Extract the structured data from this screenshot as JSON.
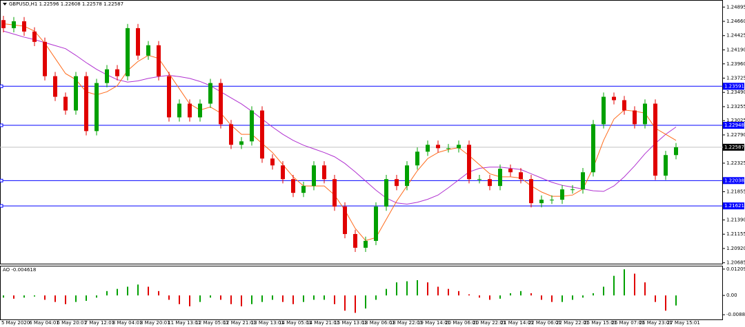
{
  "chart_data": [
    {
      "type": "candlestick",
      "title": "GBPUSD,H1  1.22596 1.22608 1.22578 1.22587",
      "x_labels": [
        "5 May 2020",
        "6 May 04:01",
        "6 May 20:01",
        "7 May 12:01",
        "8 May 04:01",
        "8 May 20:01",
        "11 May 13:01",
        "12 May 05:01",
        "12 May 21:01",
        "13 May 13:01",
        "14 May 05:01",
        "14 May 21:01",
        "15 May 13:01",
        "18 May 06:01",
        "18 May 22:01",
        "19 May 14:01",
        "20 May 06:01",
        "20 May 22:01",
        "21 May 14:01",
        "22 May 06:01",
        "22 May 22:01",
        "25 May 15:01",
        "26 May 07:01",
        "26 May 23:01",
        "27 May 15:01"
      ],
      "open": [
        1.2468,
        1.24548,
        1.24661,
        1.24492,
        1.24322,
        1.23757,
        1.23418,
        1.23192,
        1.23757,
        1.22853,
        1.23644,
        1.2387,
        1.23757,
        1.24548,
        1.24096,
        1.24266,
        1.23757,
        1.23079,
        1.23305,
        1.23079,
        1.23305,
        1.23644,
        1.22966,
        1.22627,
        1.22684,
        1.23192,
        1.22401,
        1.22288,
        1.22062,
        1.21836,
        1.21949,
        1.22288,
        1.22062,
        1.2161,
        1.21158,
        1.20932,
        1.21045,
        1.2161,
        1.22062,
        1.21949,
        1.22288,
        1.22514,
        1.22627,
        1.22571,
        1.22571,
        1.22627,
        1.22062,
        1.22062,
        1.21949,
        1.22232,
        1.22175,
        1.22062,
        1.21666,
        1.21723,
        1.21723,
        1.21893,
        1.21893,
        1.22175,
        1.22966,
        1.23418,
        1.23362,
        1.23192,
        1.22966,
        1.23305,
        1.22119,
        1.22458
      ],
      "high": [
        1.2475,
        1.24731,
        1.24731,
        1.24562,
        1.24392,
        1.23827,
        1.23488,
        1.23827,
        1.23827,
        1.23714,
        1.2394,
        1.2394,
        1.24618,
        1.24618,
        1.24336,
        1.24336,
        1.23827,
        1.23375,
        1.23375,
        1.23375,
        1.23714,
        1.23714,
        1.23036,
        1.22754,
        1.23262,
        1.23262,
        1.22471,
        1.22358,
        1.22132,
        1.22019,
        1.22358,
        1.22358,
        1.22132,
        1.2168,
        1.21228,
        1.21115,
        1.2168,
        1.22132,
        1.22132,
        1.22358,
        1.22584,
        1.22697,
        1.22697,
        1.22641,
        1.22697,
        1.22697,
        1.22132,
        1.22132,
        1.22302,
        1.22302,
        1.22245,
        1.22132,
        1.21793,
        1.21793,
        1.21963,
        1.21963,
        1.22245,
        1.23036,
        1.23488,
        1.23488,
        1.23432,
        1.23262,
        1.23375,
        1.23375,
        1.22528,
        1.22657
      ],
      "low": [
        1.24478,
        1.24478,
        1.24422,
        1.24252,
        1.23687,
        1.23348,
        1.23122,
        1.23122,
        1.22783,
        1.22783,
        1.23574,
        1.23687,
        1.23687,
        1.24026,
        1.24026,
        1.23687,
        1.23009,
        1.23009,
        1.23009,
        1.23009,
        1.23235,
        1.22896,
        1.22557,
        1.22557,
        1.22614,
        1.22331,
        1.22218,
        1.21992,
        1.21766,
        1.21766,
        1.21879,
        1.21992,
        1.2154,
        1.21088,
        1.20862,
        1.20862,
        1.20975,
        1.2154,
        1.21879,
        1.21879,
        1.22218,
        1.22444,
        1.22501,
        1.22501,
        1.22501,
        1.21992,
        1.21992,
        1.21879,
        1.21879,
        1.22105,
        1.21992,
        1.21596,
        1.21596,
        1.21653,
        1.21653,
        1.21823,
        1.21823,
        1.22105,
        1.22896,
        1.23292,
        1.23122,
        1.22896,
        1.22896,
        1.22049,
        1.22049,
        1.22388
      ],
      "close": [
        1.24548,
        1.24661,
        1.24492,
        1.24322,
        1.23757,
        1.23418,
        1.23192,
        1.23757,
        1.22853,
        1.23644,
        1.2387,
        1.23757,
        1.24548,
        1.24096,
        1.24266,
        1.23757,
        1.23079,
        1.23305,
        1.23079,
        1.23305,
        1.23644,
        1.22966,
        1.22627,
        1.22684,
        1.23192,
        1.22401,
        1.22288,
        1.22062,
        1.21836,
        1.21949,
        1.22288,
        1.22062,
        1.2161,
        1.21158,
        1.20932,
        1.21045,
        1.2161,
        1.22062,
        1.21949,
        1.22288,
        1.22514,
        1.22627,
        1.22571,
        1.22571,
        1.22627,
        1.22062,
        1.22062,
        1.21949,
        1.22232,
        1.22175,
        1.22062,
        1.21666,
        1.21723,
        1.21723,
        1.21893,
        1.21893,
        1.22175,
        1.22966,
        1.23418,
        1.23362,
        1.23192,
        1.22966,
        1.23305,
        1.22119,
        1.22458,
        1.22587
      ],
      "up_color": "#00a000",
      "down_color": "#e00000",
      "ma_fast": {
        "color": "#ff6a1a",
        "values": [
          1.2462,
          1.246,
          1.2458,
          1.245,
          1.243,
          1.2405,
          1.238,
          1.237,
          1.235,
          1.2345,
          1.235,
          1.236,
          1.2385,
          1.24,
          1.241,
          1.2405,
          1.238,
          1.2355,
          1.233,
          1.232,
          1.2325,
          1.2315,
          1.2295,
          1.228,
          1.228,
          1.2265,
          1.225,
          1.223,
          1.221,
          1.2195,
          1.2195,
          1.2195,
          1.218,
          1.2155,
          1.2125,
          1.2105,
          1.211,
          1.214,
          1.217,
          1.2195,
          1.222,
          1.224,
          1.225,
          1.2255,
          1.2258,
          1.2245,
          1.223,
          1.2215,
          1.221,
          1.221,
          1.2208,
          1.2195,
          1.2185,
          1.2178,
          1.2178,
          1.218,
          1.219,
          1.2225,
          1.227,
          1.2305,
          1.232,
          1.2318,
          1.2315,
          1.229,
          1.228,
          1.227
        ]
      },
      "ma_slow": {
        "color": "#b030d0",
        "values": [
          1.245,
          1.2445,
          1.244,
          1.2436,
          1.2431,
          1.2426,
          1.2421,
          1.241,
          1.2398,
          1.2387,
          1.2378,
          1.237,
          1.2366,
          1.2368,
          1.2372,
          1.2375,
          1.2377,
          1.2375,
          1.2372,
          1.2367,
          1.236,
          1.235,
          1.234,
          1.233,
          1.2318,
          1.2305,
          1.2292,
          1.228,
          1.227,
          1.2262,
          1.2256,
          1.225,
          1.2243,
          1.2232,
          1.2218,
          1.2203,
          1.2188,
          1.2175,
          1.2167,
          1.2165,
          1.2168,
          1.2173,
          1.218,
          1.2192,
          1.2205,
          1.2218,
          1.2224,
          1.2226,
          1.2226,
          1.2224,
          1.2222,
          1.2215,
          1.2208,
          1.2201,
          1.2196,
          1.2193,
          1.219,
          1.2187,
          1.2186,
          1.2195,
          1.221,
          1.2228,
          1.2248,
          1.2265,
          1.228,
          1.2292
        ]
      },
      "levels": [
        1.23591,
        1.22948,
        1.22038,
        1.21621
      ],
      "level_color": "#0000ff",
      "last": 1.22587,
      "ylim": [
        1.2067,
        1.25
      ],
      "yticks": [
        1.24895,
        {
          "value": 1.2466,
          "label": "1.24660"
        },
        1.24425,
        {
          "value": 1.2419,
          "label": "1.24190"
        },
        {
          "value": 1.2396,
          "label": "1.23960"
        },
        1.23725,
        {
          "value": 1.2349,
          "label": "1.23490"
        },
        1.23255,
        1.23025,
        {
          "value": 1.2279,
          "label": "1.22790"
        },
        1.22325,
        1.21855,
        {
          "value": 1.2139,
          "label": "1.21390"
        },
        1.21155,
        {
          "value": 1.2092,
          "label": "1.20920"
        },
        1.20685
      ]
    },
    {
      "type": "histogram",
      "title": "AO -0.004618",
      "values": [
        -0.001,
        -0.0015,
        -0.001,
        -0.0005,
        -0.002,
        -0.003,
        -0.004,
        -0.003,
        -0.0025,
        -0.001,
        0.002,
        0.003,
        0.004,
        0.005,
        0.004,
        0.002,
        -0.002,
        -0.004,
        -0.005,
        -0.003,
        -0.001,
        -0.002,
        -0.004,
        -0.005,
        -0.004,
        -0.003,
        -0.002,
        -0.003,
        -0.004,
        -0.003,
        -0.002,
        -0.002,
        -0.004,
        -0.007,
        -0.008,
        -0.006,
        -0.002,
        0.003,
        0.006,
        0.0065,
        0.007,
        0.006,
        0.004,
        0.003,
        0.002,
        0.0005,
        -0.001,
        -0.002,
        -0.0015,
        0.001,
        0.002,
        0.001,
        -0.002,
        -0.003,
        -0.003,
        -0.002,
        -0.001,
        0.001,
        0.004,
        0.009,
        0.012,
        0.01,
        0.006,
        -0.003,
        -0.007,
        -0.004618
      ],
      "up_color": "#00a000",
      "down_color": "#e00000",
      "ylim": [
        -0.01102,
        0.01332
      ],
      "yticks": [
        0.01209,
        {
          "value": 0,
          "label": "0.00"
        },
        -0.00886
      ]
    }
  ]
}
